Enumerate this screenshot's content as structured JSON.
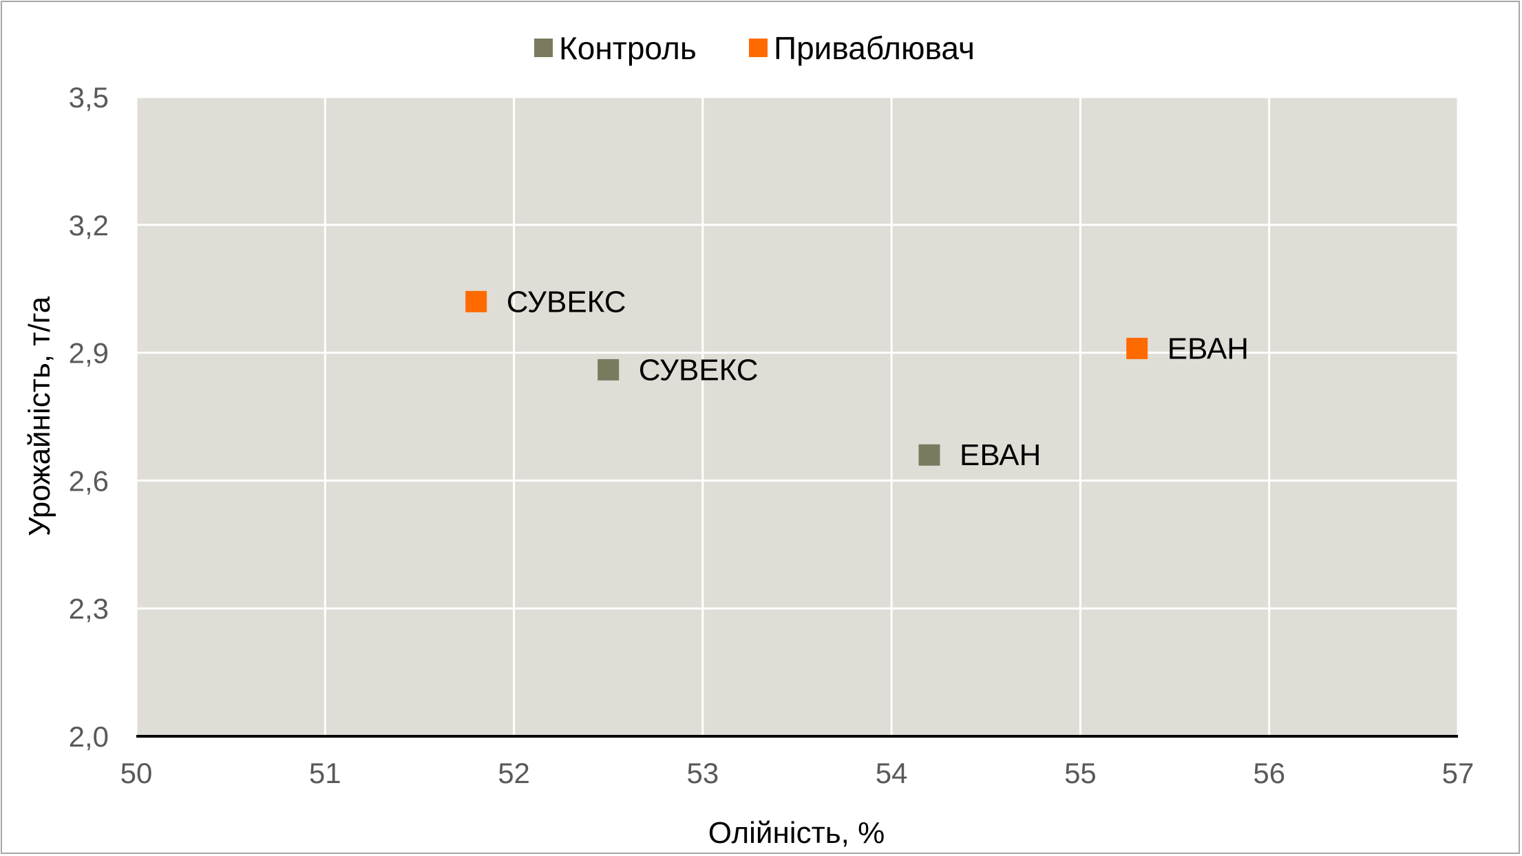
{
  "chart_data": {
    "type": "scatter",
    "xlabel": "Олійність, %",
    "ylabel": "Урожайність, т/га",
    "xlim": [
      50,
      57
    ],
    "ylim": [
      2.0,
      3.5
    ],
    "x_ticks": [
      "50",
      "51",
      "52",
      "53",
      "54",
      "55",
      "56",
      "57"
    ],
    "y_ticks": [
      "2,0",
      "2,3",
      "2,6",
      "2,9",
      "3,2",
      "3,5"
    ],
    "grid": true,
    "legend_position": "top",
    "plot_background": "#e0ddd7",
    "series": [
      {
        "name": "Контроль",
        "color": "#7a7a5f",
        "points": [
          {
            "x": 52.5,
            "y": 2.86,
            "label": "СУВЕКС"
          },
          {
            "x": 54.2,
            "y": 2.66,
            "label": "ЕВАН"
          }
        ]
      },
      {
        "name": "Приваблювач",
        "color": "#ff6a00",
        "points": [
          {
            "x": 51.8,
            "y": 3.02,
            "label": "СУВЕКС"
          },
          {
            "x": 55.3,
            "y": 2.91,
            "label": "ЕВАН"
          }
        ]
      }
    ]
  }
}
